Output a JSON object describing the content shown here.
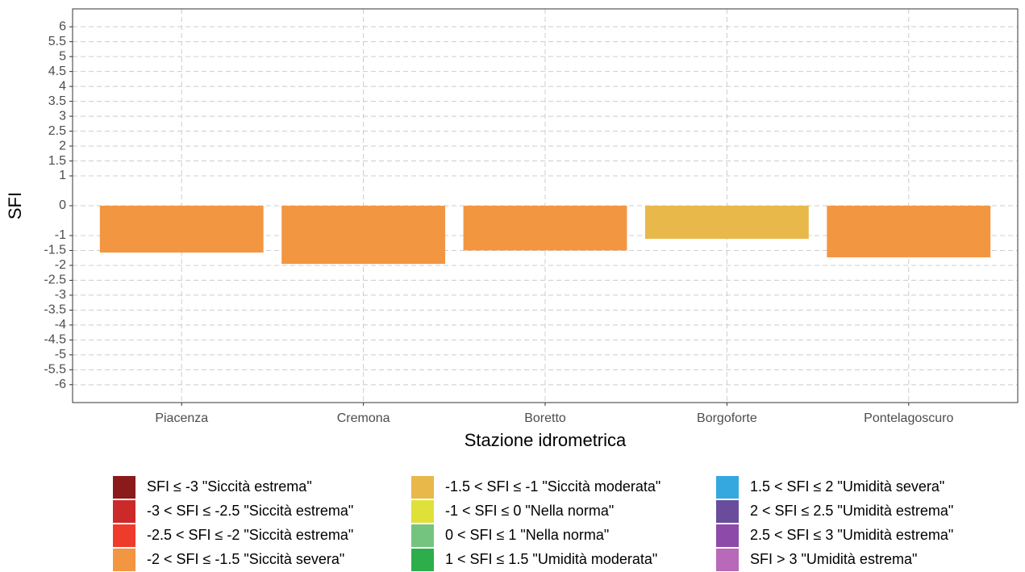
{
  "chart_data": {
    "type": "bar",
    "x_label": "Stazione idrometrica",
    "y_label": "SFI",
    "categories": [
      "Piacenza",
      "Cremona",
      "Boretto",
      "Borgoforte",
      "Pontelagoscuro"
    ],
    "values": [
      -1.57,
      -1.95,
      -1.5,
      -1.11,
      -1.73
    ],
    "colors": [
      "#F39641",
      "#F39641",
      "#F39641",
      "#E8B84A",
      "#F39641"
    ],
    "ylim": [
      -6.6,
      6.6
    ],
    "yticks": [
      -6,
      -5.5,
      -5,
      -4.5,
      -4,
      -3.5,
      -3,
      -2.5,
      -2,
      -1.5,
      -1,
      0,
      1,
      1.5,
      2,
      2.5,
      3,
      3.5,
      4,
      4.5,
      5,
      5.5,
      6
    ],
    "grid": true,
    "legend": [
      {
        "label": "SFI ≤ -3 \"Siccità estrema\"",
        "color": "#8B1A1A"
      },
      {
        "label": "-3 < SFI ≤ -2.5 \"Siccità estrema\"",
        "color": "#CC2A2A"
      },
      {
        "label": "-2.5 < SFI ≤ -2 \"Siccità estrema\"",
        "color": "#EE3B2C"
      },
      {
        "label": "-2 < SFI ≤ -1.5 \"Siccità severa\"",
        "color": "#F39641"
      },
      {
        "label": "-1.5 < SFI ≤ -1 \"Siccità moderata\"",
        "color": "#E8B84A"
      },
      {
        "label": "-1 < SFI ≤ 0 \"Nella norma\"",
        "color": "#E0E03A"
      },
      {
        "label": "0 < SFI ≤ 1 \"Nella norma\"",
        "color": "#74C480"
      },
      {
        "label": "1 < SFI ≤ 1.5 \"Umidità moderata\"",
        "color": "#2EAE4A"
      },
      {
        "label": "1.5 < SFI ≤ 2 \"Umidità severa\"",
        "color": "#36A8E0"
      },
      {
        "label": "2 < SFI ≤ 2.5 \"Umidità estrema\"",
        "color": "#6A4C9C"
      },
      {
        "label": "2.5 < SFI ≤ 3 \"Umidità estrema\"",
        "color": "#8E4AA8"
      },
      {
        "label": "SFI > 3 \"Umidità estrema\"",
        "color": "#B86AB8"
      }
    ]
  }
}
